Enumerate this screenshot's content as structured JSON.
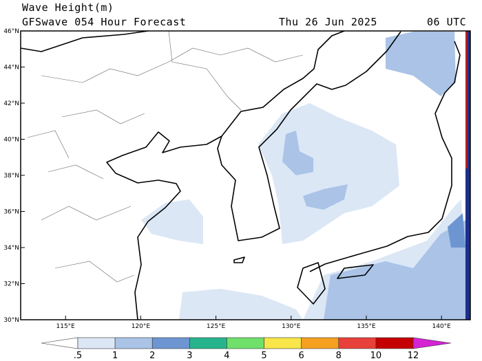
{
  "header": {
    "title": "Wave Height(m)",
    "subtitle": "GFSwave 054 Hour Forecast",
    "date": "Thu 26 Jun 2025",
    "time": "06 UTC"
  },
  "map": {
    "lat_labels": [
      "30°N",
      "32°N",
      "34°N",
      "36°N",
      "38°N",
      "40°N",
      "42°N",
      "44°N",
      "46°N"
    ],
    "lon_labels": [
      "115°E",
      "120°E",
      "125°E",
      "130°E",
      "135°E",
      "140°E"
    ]
  },
  "colorbar": {
    "labels": [
      ".5",
      "1",
      "2",
      "3",
      "4",
      "5",
      "6",
      "8",
      "10",
      "12"
    ],
    "colors": [
      "#ffffff",
      "#dbe7f5",
      "#aac3e7",
      "#6d95d1",
      "#27b48c",
      "#6fe06a",
      "#f8e64a",
      "#f5a021",
      "#e8403a",
      "#c40000",
      "#d424d4"
    ]
  }
}
